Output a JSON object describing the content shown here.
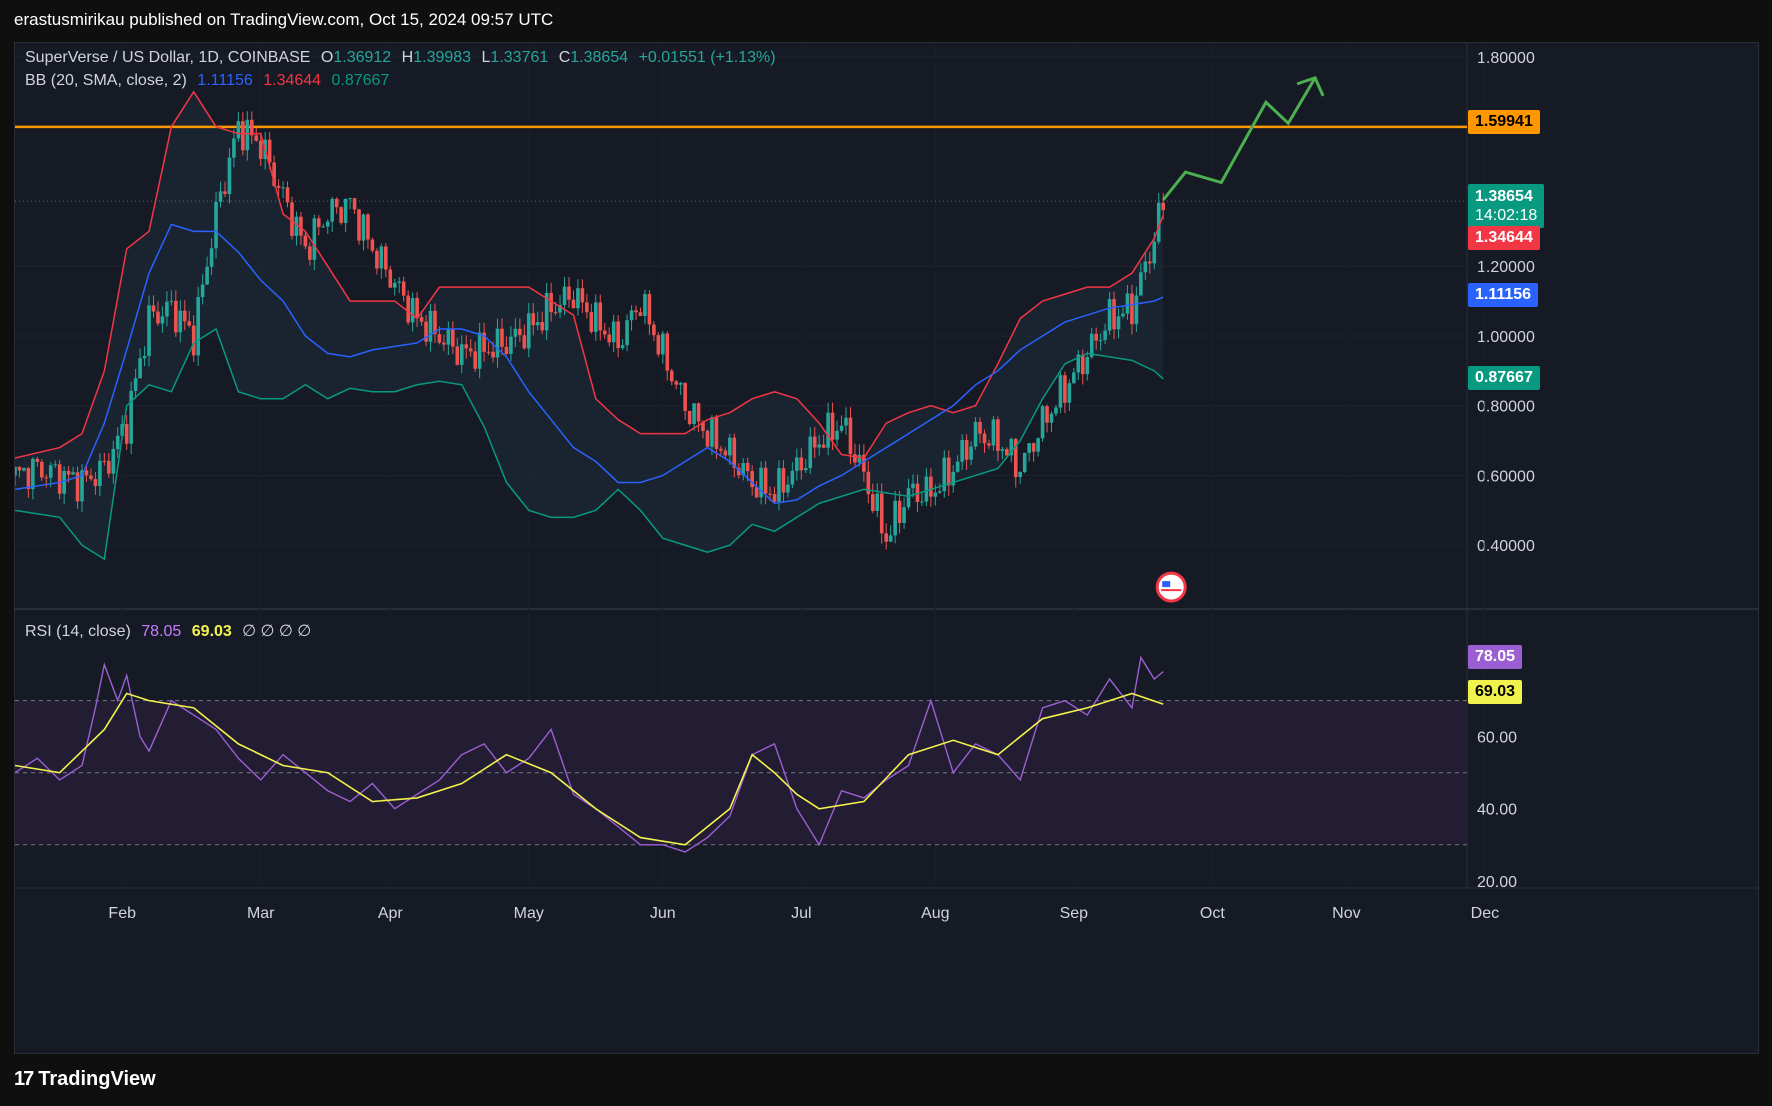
{
  "header": {
    "text": "erastusmirikau published on TradingView.com, Oct 15, 2024 09:57 UTC"
  },
  "legend": {
    "symbol": "SuperVerse / US Dollar, 1D, COINBASE",
    "o_label": "O",
    "o": "1.36912",
    "h_label": "H",
    "h": "1.39983",
    "l_label": "L",
    "l": "1.33761",
    "c_label": "C",
    "c": "1.38654",
    "change": "+0.01551 (+1.13%)",
    "bb_label": "BB (20, SMA, close, 2)",
    "bb_mid": "1.11156",
    "bb_upper": "1.34644",
    "bb_lower": "0.87667",
    "rsi_label": "RSI (14, close)",
    "rsi_value": "78.05",
    "rsi_ma": "69.03",
    "rsi_extra": "∅ ∅ ∅ ∅"
  },
  "price_tags": {
    "resistance": "1.59941",
    "last": "1.38654",
    "countdown": "14:02:18",
    "upper": "1.34644",
    "mid": "1.11156",
    "lower": "0.87667",
    "rsi": "78.05",
    "rsi_ma": "69.03"
  },
  "footer": {
    "brand": "TradingView",
    "logo": "17"
  },
  "colors": {
    "up": "#26a69a",
    "down": "#ef5350",
    "bb_mid": "#2962ff",
    "bb_upper": "#f23645",
    "bb_lower": "#089981",
    "resistance": "#ff9800",
    "projection": "#4caf50",
    "rsi": "#9c5fd3",
    "rsi_ma": "#f2f24d",
    "last_tag": "#089981"
  },
  "chart_data": {
    "type": "line",
    "title": "SuperVerse / US Dollar, 1D, COINBASE",
    "x": [
      "Feb",
      "Mar",
      "Apr",
      "May",
      "Jun",
      "Jul",
      "Aug",
      "Sep",
      "Oct",
      "Nov",
      "Dec"
    ],
    "price_axis": {
      "ticks": [
        "1.80000",
        "1.20000",
        "1.00000",
        "0.80000",
        "0.60000",
        "0.40000"
      ],
      "ylim": [
        0.22,
        1.84
      ]
    },
    "rsi_axis": {
      "ticks": [
        "60.00",
        "40.00",
        "20.00"
      ],
      "ylim": [
        18,
        86
      ],
      "levels": [
        70,
        50,
        30
      ]
    },
    "resistance_level": 1.59941,
    "series": [
      {
        "name": "Close",
        "x": [
          0,
          5,
          10,
          15,
          20,
          25,
          30,
          35,
          40,
          45,
          50,
          55,
          60,
          65,
          70,
          75,
          80,
          85,
          90,
          95,
          100,
          105,
          110,
          115,
          120,
          125,
          130,
          135,
          140,
          145,
          150,
          155,
          160,
          165,
          170,
          175,
          180,
          185,
          190,
          195,
          200,
          205,
          210,
          215,
          220,
          225,
          230,
          235,
          240,
          245,
          250,
          255,
          257
        ],
        "values": [
          0.6,
          0.62,
          0.6,
          0.58,
          0.62,
          0.75,
          1.05,
          1.08,
          1.0,
          1.35,
          1.6,
          1.55,
          1.4,
          1.25,
          1.35,
          1.38,
          1.25,
          1.15,
          1.05,
          1.0,
          0.95,
          0.96,
          0.98,
          1.02,
          1.08,
          1.12,
          1.04,
          0.98,
          1.1,
          0.95,
          0.8,
          0.72,
          0.66,
          0.58,
          0.55,
          0.62,
          0.7,
          0.75,
          0.6,
          0.42,
          0.55,
          0.55,
          0.62,
          0.72,
          0.7,
          0.62,
          0.75,
          0.85,
          0.95,
          1.05,
          1.08,
          1.28,
          1.38654
        ]
      },
      {
        "name": "BB Upper",
        "x": [
          0,
          10,
          15,
          20,
          25,
          30,
          35,
          40,
          45,
          50,
          55,
          60,
          65,
          70,
          75,
          80,
          85,
          90,
          95,
          100,
          105,
          110,
          115,
          120,
          125,
          130,
          135,
          140,
          145,
          150,
          155,
          160,
          165,
          170,
          175,
          180,
          185,
          190,
          195,
          200,
          205,
          210,
          215,
          220,
          225,
          230,
          235,
          240,
          245,
          250,
          255,
          257
        ],
        "values": [
          0.65,
          0.68,
          0.72,
          0.9,
          1.25,
          1.3,
          1.6,
          1.7,
          1.6,
          1.58,
          1.58,
          1.35,
          1.3,
          1.2,
          1.1,
          1.1,
          1.1,
          1.05,
          1.14,
          1.14,
          1.14,
          1.14,
          1.14,
          1.1,
          1.06,
          0.82,
          0.76,
          0.72,
          0.72,
          0.72,
          0.76,
          0.78,
          0.82,
          0.84,
          0.82,
          0.75,
          0.66,
          0.65,
          0.75,
          0.78,
          0.8,
          0.78,
          0.8,
          0.92,
          1.05,
          1.1,
          1.12,
          1.14,
          1.14,
          1.18,
          1.28,
          1.34644
        ]
      },
      {
        "name": "BB Basis",
        "x": [
          0,
          10,
          15,
          20,
          25,
          30,
          35,
          40,
          45,
          50,
          55,
          60,
          65,
          70,
          75,
          80,
          85,
          90,
          95,
          100,
          105,
          110,
          115,
          120,
          125,
          130,
          135,
          140,
          145,
          150,
          155,
          160,
          165,
          170,
          175,
          180,
          185,
          190,
          195,
          200,
          205,
          210,
          215,
          220,
          225,
          230,
          235,
          240,
          245,
          250,
          255,
          257
        ],
        "values": [
          0.56,
          0.58,
          0.6,
          0.75,
          0.96,
          1.18,
          1.32,
          1.3,
          1.3,
          1.24,
          1.16,
          1.1,
          1.0,
          0.95,
          0.94,
          0.96,
          0.97,
          0.98,
          1.02,
          1.02,
          1.0,
          0.94,
          0.84,
          0.76,
          0.68,
          0.64,
          0.58,
          0.58,
          0.6,
          0.64,
          0.68,
          0.64,
          0.58,
          0.52,
          0.53,
          0.57,
          0.6,
          0.64,
          0.68,
          0.72,
          0.76,
          0.8,
          0.86,
          0.9,
          0.96,
          1.0,
          1.04,
          1.06,
          1.08,
          1.09,
          1.1,
          1.11156
        ]
      },
      {
        "name": "BB Lower",
        "x": [
          0,
          10,
          15,
          20,
          25,
          30,
          35,
          40,
          45,
          50,
          55,
          60,
          65,
          70,
          75,
          80,
          85,
          90,
          95,
          100,
          105,
          110,
          115,
          120,
          125,
          130,
          135,
          140,
          145,
          150,
          155,
          160,
          165,
          170,
          175,
          180,
          185,
          190,
          195,
          200,
          205,
          210,
          215,
          220,
          225,
          230,
          235,
          240,
          245,
          250,
          255,
          257
        ],
        "values": [
          0.5,
          0.48,
          0.4,
          0.36,
          0.8,
          0.86,
          0.84,
          0.98,
          1.02,
          0.84,
          0.82,
          0.82,
          0.86,
          0.82,
          0.85,
          0.84,
          0.84,
          0.86,
          0.87,
          0.86,
          0.74,
          0.58,
          0.5,
          0.48,
          0.48,
          0.5,
          0.56,
          0.5,
          0.42,
          0.4,
          0.38,
          0.4,
          0.46,
          0.44,
          0.48,
          0.52,
          0.54,
          0.56,
          0.55,
          0.54,
          0.56,
          0.58,
          0.6,
          0.62,
          0.7,
          0.82,
          0.92,
          0.95,
          0.94,
          0.93,
          0.9,
          0.87667
        ]
      },
      {
        "name": "RSI",
        "x": [
          0,
          5,
          10,
          15,
          18,
          20,
          23,
          25,
          28,
          30,
          35,
          40,
          45,
          50,
          55,
          60,
          65,
          70,
          75,
          80,
          85,
          90,
          95,
          100,
          105,
          110,
          115,
          120,
          125,
          130,
          135,
          140,
          145,
          150,
          155,
          160,
          165,
          170,
          175,
          180,
          185,
          190,
          195,
          200,
          205,
          210,
          215,
          220,
          225,
          230,
          235,
          240,
          245,
          250,
          252,
          255,
          257
        ],
        "values": [
          50,
          54,
          48,
          52,
          68,
          80,
          70,
          77,
          60,
          56,
          70,
          66,
          62,
          54,
          48,
          55,
          50,
          45,
          42,
          47,
          40,
          44,
          48,
          55,
          58,
          50,
          54,
          62,
          44,
          40,
          35,
          30,
          30,
          28,
          32,
          38,
          55,
          58,
          40,
          30,
          45,
          43,
          48,
          52,
          70,
          50,
          58,
          55,
          48,
          68,
          70,
          66,
          76,
          68,
          82,
          76,
          78.05
        ]
      },
      {
        "name": "RSI MA",
        "x": [
          0,
          10,
          20,
          25,
          30,
          40,
          50,
          60,
          70,
          80,
          90,
          100,
          110,
          120,
          130,
          140,
          150,
          160,
          165,
          170,
          175,
          180,
          190,
          200,
          210,
          220,
          230,
          240,
          250,
          257
        ],
        "values": [
          52,
          50,
          62,
          72,
          70,
          68,
          58,
          52,
          50,
          42,
          43,
          47,
          55,
          50,
          40,
          32,
          30,
          40,
          55,
          50,
          44,
          40,
          42,
          55,
          59,
          55,
          65,
          68,
          72,
          69.03
        ]
      }
    ],
    "projection": {
      "name": "Projection",
      "x": [
        257,
        262,
        270,
        280,
        285,
        291
      ],
      "values": [
        1.39,
        1.47,
        1.44,
        1.67,
        1.61,
        1.74
      ]
    }
  }
}
